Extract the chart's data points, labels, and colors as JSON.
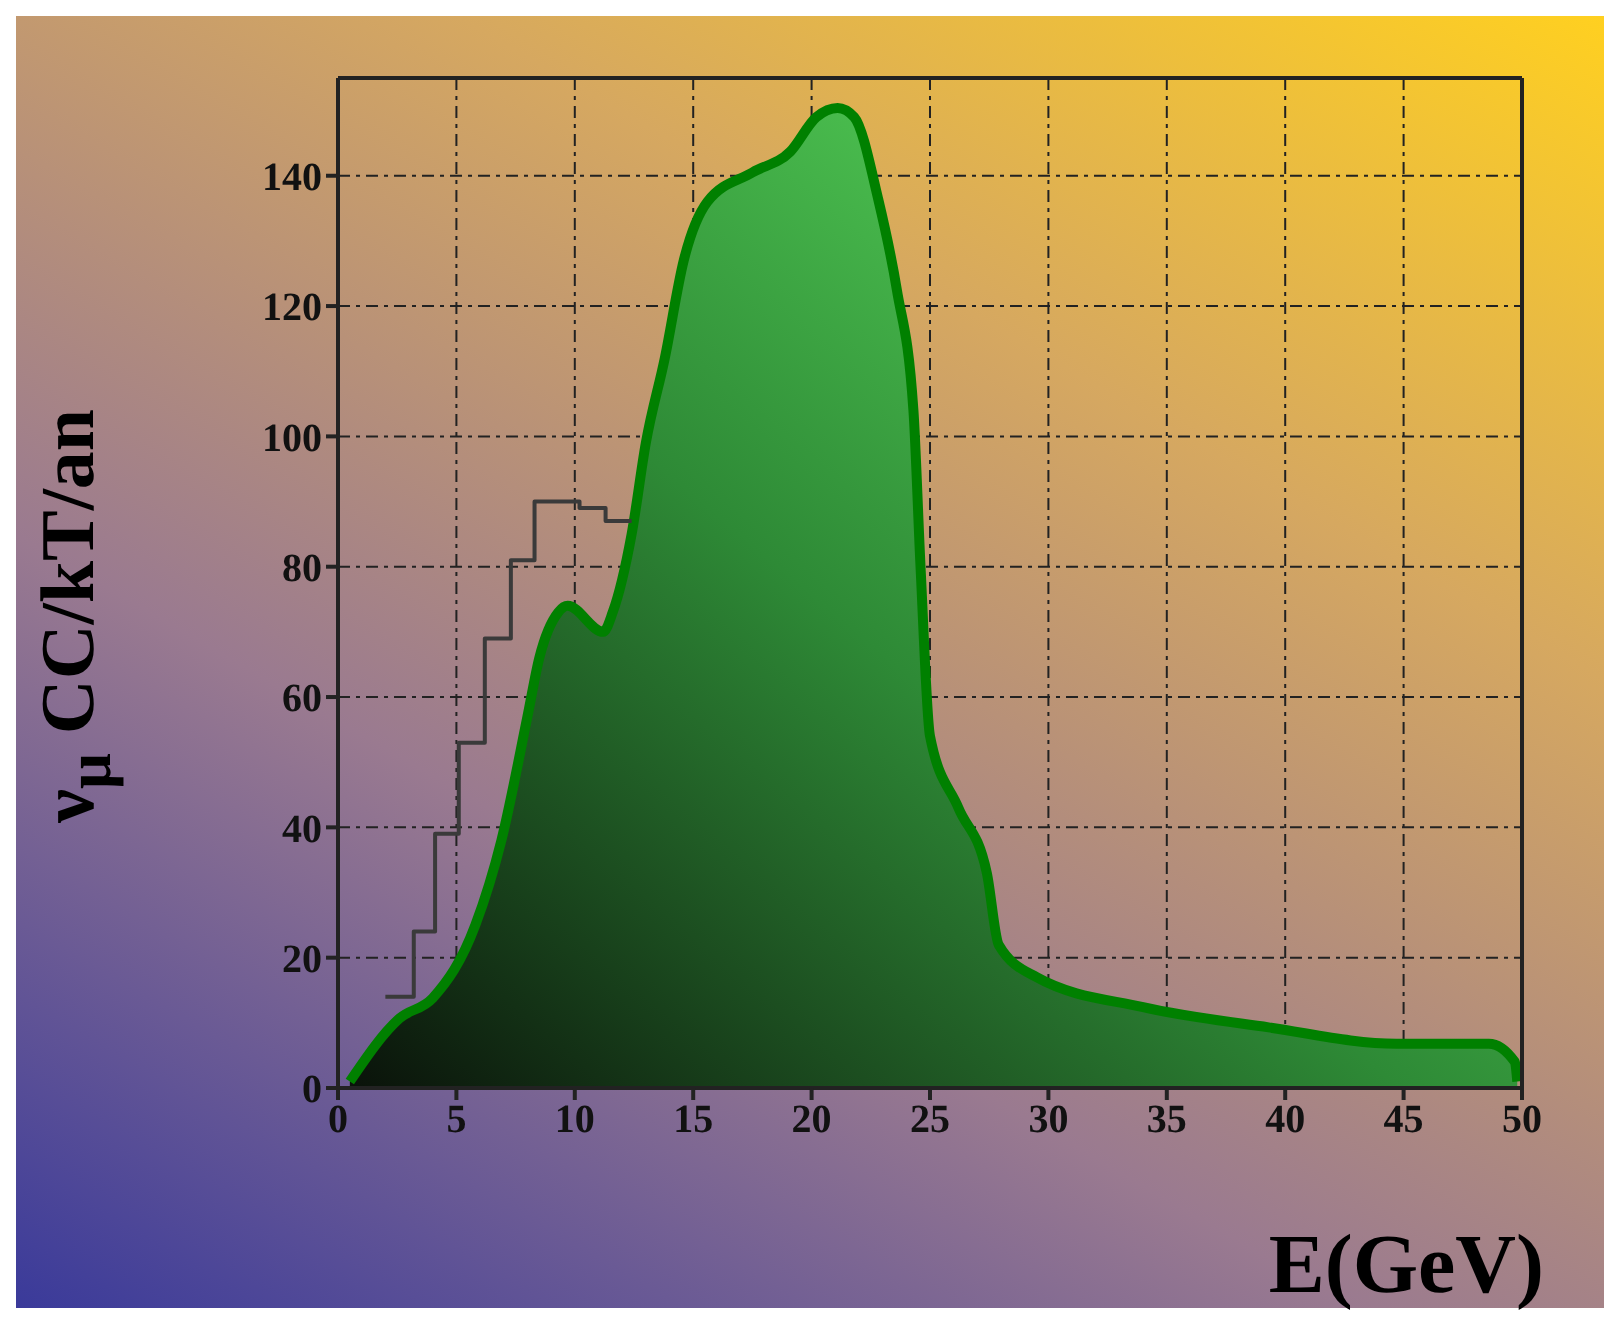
{
  "chart_data": {
    "type": "area",
    "xlabel": "E(GeV)",
    "ylabel": "ν$_{μ}$ CC/kT/an",
    "xlim": [
      0,
      50
    ],
    "xticks": [
      0,
      5,
      10,
      15,
      20,
      25,
      30,
      35,
      40,
      45,
      50
    ],
    "ylim": [
      0,
      155
    ],
    "yticks": [
      0,
      20,
      40,
      60,
      80,
      100,
      120,
      140
    ],
    "grid": true,
    "legend": false,
    "series": [
      {
        "type": "step",
        "color": "#3a3a3a",
        "x": [
          2,
          3.2,
          4.1,
          5.1,
          6.2,
          7.3,
          8.3,
          10.2,
          11.3,
          12.4
        ],
        "values": [
          14,
          24,
          39,
          53,
          69,
          81,
          90,
          89,
          87,
          87
        ]
      },
      {
        "color": "#008000",
        "x": [
          0.5,
          2.6,
          4,
          5.8,
          6.9,
          8,
          8.5,
          9.3,
          9.7,
          11.2,
          11.6,
          12.4,
          13,
          13.8,
          14.6,
          15.6,
          17.5,
          19.1,
          20.2,
          21.1,
          21.8,
          22.8,
          23.6,
          24.3,
          24.6,
          25,
          26.2,
          27.4,
          27.9,
          29.5,
          34,
          39.3,
          44.7,
          48.6,
          49.7,
          49.8
        ],
        "values": [
          1,
          10.7,
          13.8,
          25,
          38,
          57,
          66,
          73,
          74,
          70,
          73,
          85,
          99,
          112,
          127,
          136,
          140.5,
          143.7,
          149,
          150.4,
          149,
          136.6,
          122.5,
          104,
          80,
          54,
          43,
          33,
          22,
          17,
          12.4,
          9.3,
          6.8,
          6.8,
          4,
          1
        ]
      }
    ]
  }
}
